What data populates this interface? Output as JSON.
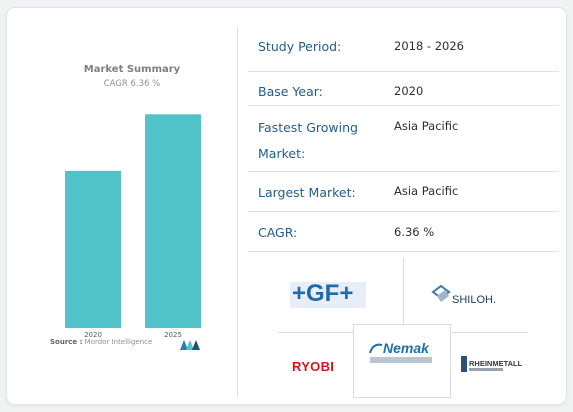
{
  "chart_data": {
    "type": "bar",
    "title": "Market Summary",
    "subtitle": "CAGR 6.36 %",
    "categories": [
      "2020",
      "2025"
    ],
    "values": [
      100,
      136
    ],
    "ylim": [
      0,
      140
    ],
    "grid": false,
    "legend": "none",
    "bar_color": "#4fc3c8",
    "source_label": "Source :",
    "source_text": "Mordor Intelligence"
  },
  "summary_table": [
    {
      "label": "Study Period:",
      "value": "2018 - 2026"
    },
    {
      "label": "Base Year:",
      "value": "2020"
    },
    {
      "label": "Fastest Growing Market:",
      "label_line1": "Fastest Growing",
      "label_line2": "Market:",
      "value": "Asia Pacific"
    },
    {
      "label": "Largest Market:",
      "value": "Asia Pacific"
    },
    {
      "label": "CAGR:",
      "value": "6.36 %"
    }
  ],
  "logos": {
    "gf": "+GF+",
    "shiloh": "SHILOH.",
    "ryobi": "RYOBI",
    "nemak": "Nemak",
    "rheinmetall": "RHEINMETALL"
  },
  "colors": {
    "label": "#225e8a",
    "bar": "#4fc3c8",
    "gf": "#1f69b1",
    "ryobi": "#d5141d"
  }
}
